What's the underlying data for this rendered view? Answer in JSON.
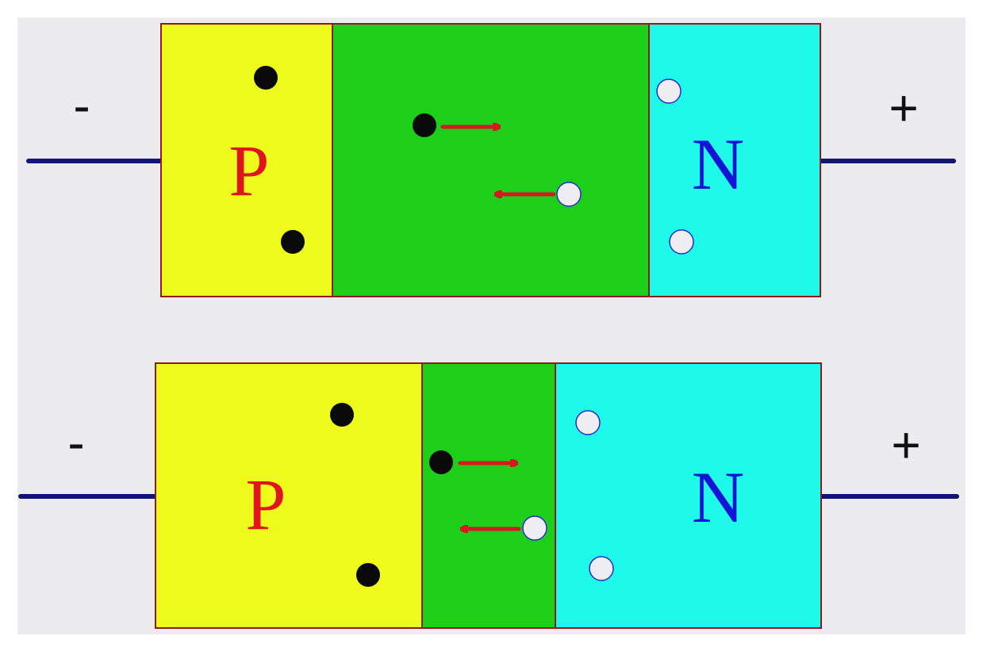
{
  "colors": {
    "background": "#ecebed",
    "p_region": "#eefa1c",
    "depletion_region": "#1ecf1a",
    "n_region": "#1ff9ea",
    "border": "#8a1c1c",
    "lead_wire": "#12147a",
    "p_label": "#e0141c",
    "n_label": "#1414d8",
    "arrow": "#d81820",
    "electron": "#0a0a0a",
    "hole": "#eeeef2",
    "hole_outline": "#2a2ad0",
    "sign": "#111111"
  },
  "diagrams": [
    {
      "id": "top",
      "p_label": "P",
      "n_label": "N",
      "left_terminal": "-",
      "right_terminal": "+"
    },
    {
      "id": "bottom",
      "p_label": "P",
      "n_label": "N",
      "left_terminal": "-",
      "right_terminal": "+"
    }
  ]
}
